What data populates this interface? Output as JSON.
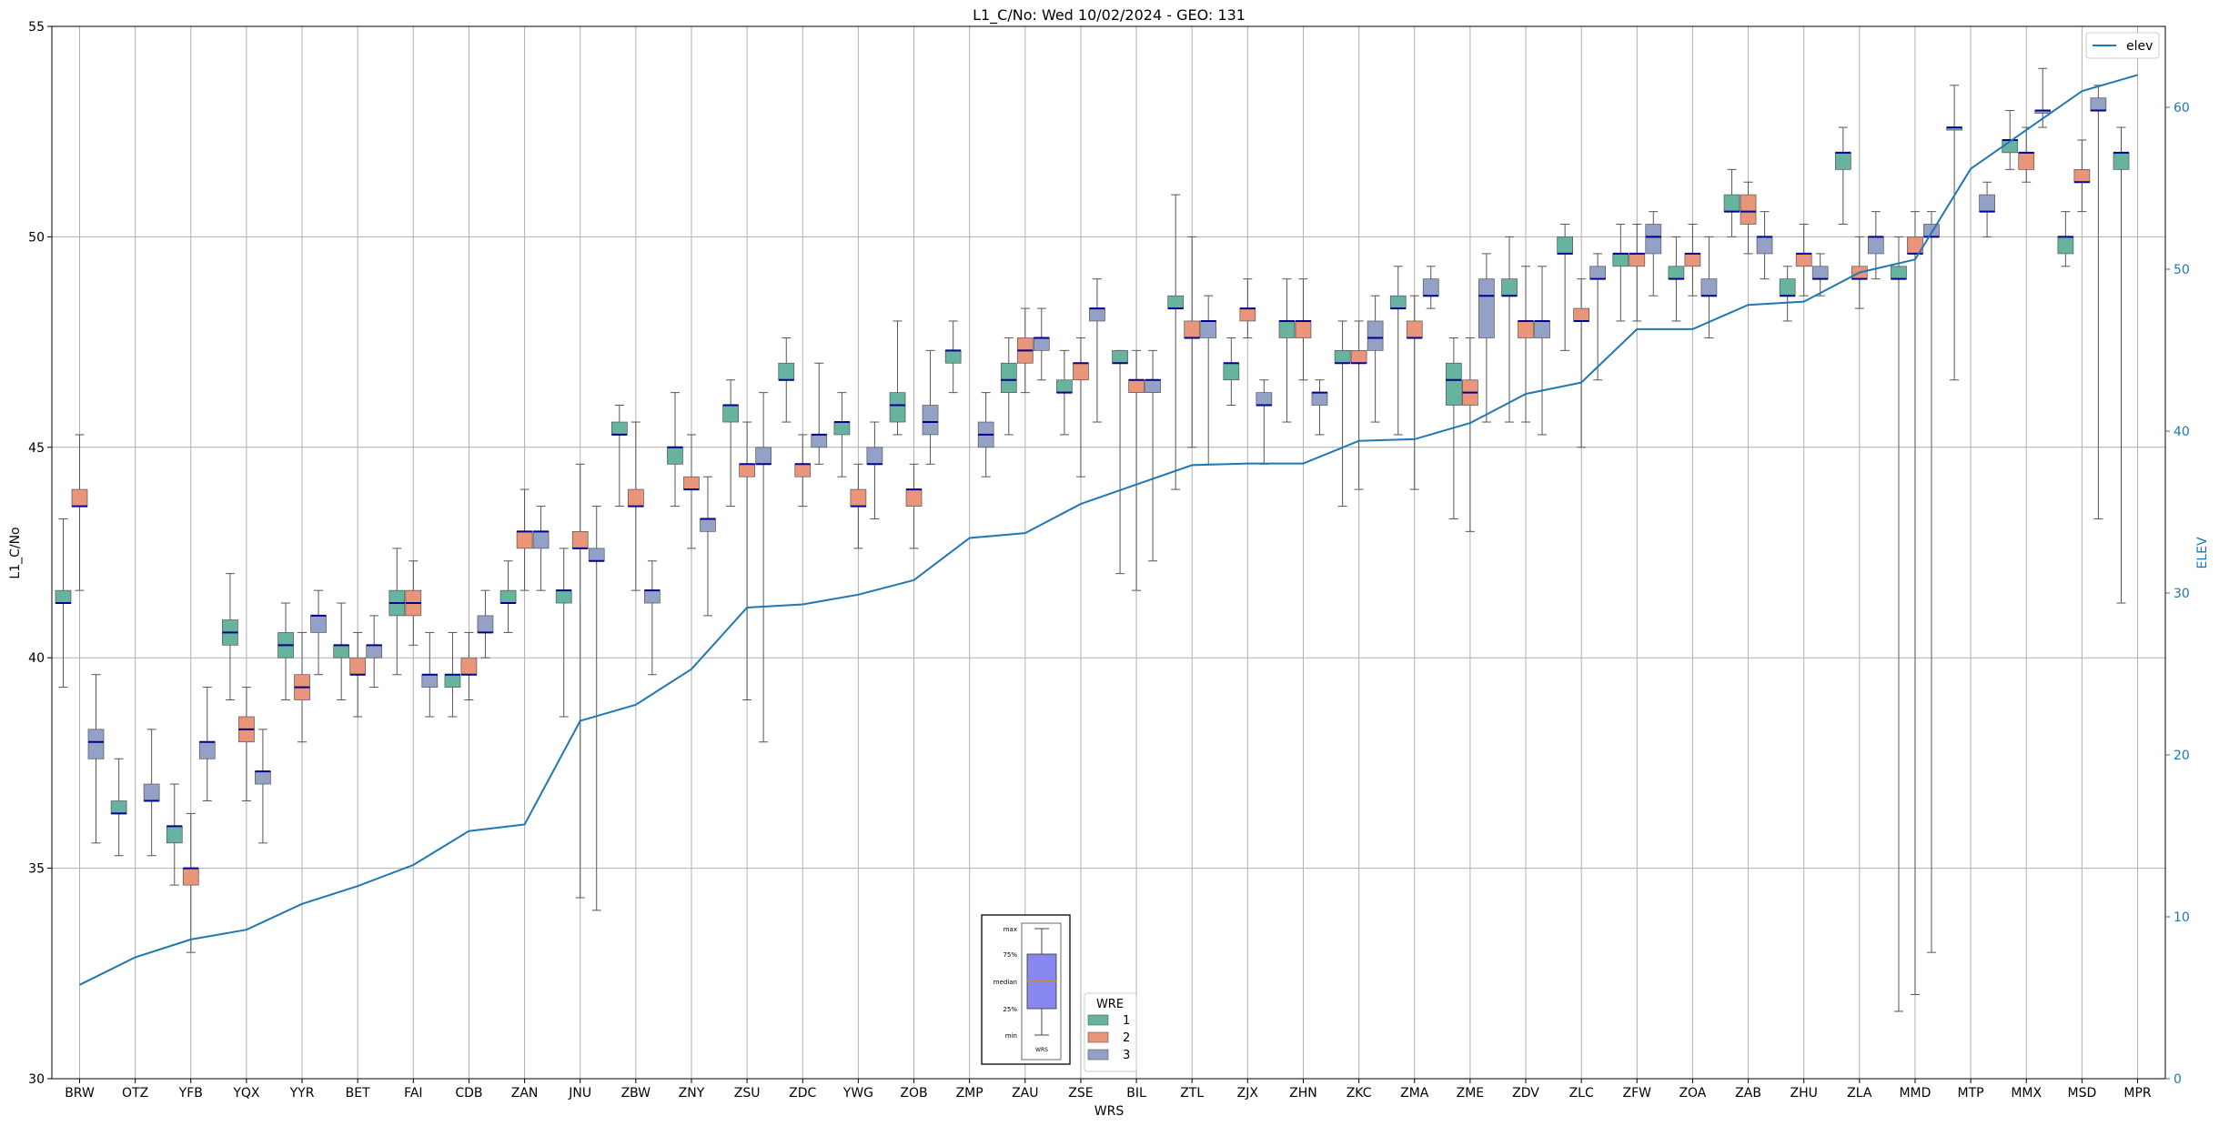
{
  "chart_data": {
    "type": "box",
    "title": "L1_C/No: Wed 10/02/2024 - GEO: 131",
    "xlabel": "WRS",
    "ylabel": "L1_C/No",
    "y2label": "ELEV",
    "ylim": [
      30,
      55
    ],
    "y2lim": [
      0,
      65
    ],
    "yticks": [
      30,
      35,
      40,
      45,
      50,
      55
    ],
    "y2ticks": [
      0,
      10,
      20,
      30,
      40,
      50,
      60
    ],
    "grid": true,
    "categories": [
      "BRW",
      "OTZ",
      "YFB",
      "YQX",
      "YYR",
      "BET",
      "FAI",
      "CDB",
      "ZAN",
      "JNU",
      "ZBW",
      "ZNY",
      "ZSU",
      "ZDC",
      "YWG",
      "ZOB",
      "ZMP",
      "ZAU",
      "ZSE",
      "BIL",
      "ZTL",
      "ZJX",
      "ZHN",
      "ZKC",
      "ZMA",
      "ZME",
      "ZDV",
      "ZLC",
      "ZFW",
      "ZOA",
      "ZAB",
      "ZHU",
      "ZLA",
      "MMD",
      "MTP",
      "MMX",
      "MSD",
      "MPR"
    ],
    "legend_wre": {
      "title": "WRE",
      "position": "bottom-center",
      "items": [
        {
          "label": "1",
          "color": "#66b3a0"
        },
        {
          "label": "2",
          "color": "#e8957a"
        },
        {
          "label": "3",
          "color": "#94a1c7"
        }
      ]
    },
    "legend_elev": {
      "label": "elev",
      "color": "#1f77b4",
      "position": "top-right"
    },
    "median_color": "#00008b",
    "box_key": {
      "labels": [
        "max",
        "75%",
        "median",
        "25%",
        "min"
      ],
      "xlabel": "WRS"
    },
    "series": [
      {
        "name": "1",
        "boxes": [
          [
            0,
            39.3,
            41.3,
            41.3,
            41.6,
            43.3
          ],
          [
            1,
            35.3,
            36.3,
            36.3,
            36.6,
            37.6
          ],
          [
            2,
            34.6,
            35.6,
            36.0,
            36.0,
            37.0
          ],
          [
            3,
            39.0,
            40.3,
            40.6,
            40.9,
            42.0
          ],
          [
            4,
            39.0,
            40.0,
            40.3,
            40.6,
            41.3
          ],
          [
            5,
            39.0,
            40.0,
            40.3,
            40.3,
            41.3
          ],
          [
            6,
            39.6,
            41.0,
            41.3,
            41.6,
            42.6
          ],
          [
            7,
            38.6,
            39.3,
            39.6,
            39.6,
            40.6
          ],
          [
            8,
            40.6,
            41.3,
            41.3,
            41.6,
            42.3
          ],
          [
            9,
            38.6,
            41.3,
            41.6,
            41.6,
            42.6
          ],
          [
            10,
            43.6,
            45.3,
            45.3,
            45.6,
            46.0
          ],
          [
            11,
            43.6,
            44.6,
            45.0,
            45.0,
            46.3
          ],
          [
            12,
            43.6,
            45.6,
            46.0,
            46.0,
            46.6
          ],
          [
            13,
            45.6,
            46.6,
            46.6,
            47.0,
            47.6
          ],
          [
            14,
            44.3,
            45.3,
            45.6,
            45.6,
            46.3
          ],
          [
            15,
            45.3,
            45.6,
            46.0,
            46.3,
            48.0
          ],
          [
            16,
            46.3,
            47.0,
            47.3,
            47.3,
            48.0
          ],
          [
            17,
            45.3,
            46.3,
            46.6,
            47.0,
            47.6
          ],
          [
            18,
            45.3,
            46.3,
            46.3,
            46.6,
            47.3
          ],
          [
            19,
            42.0,
            47.0,
            47.0,
            47.3,
            47.3
          ],
          [
            20,
            44.0,
            48.3,
            48.3,
            48.6,
            51.0
          ],
          [
            21,
            46.0,
            46.6,
            47.0,
            47.0,
            47.6
          ],
          [
            22,
            45.6,
            47.6,
            48.0,
            48.0,
            49.0
          ],
          [
            23,
            43.6,
            47.0,
            47.0,
            47.3,
            48.0
          ],
          [
            24,
            45.3,
            48.3,
            48.3,
            48.6,
            49.3
          ],
          [
            25,
            43.3,
            46.0,
            46.6,
            47.0,
            47.6
          ],
          [
            26,
            45.6,
            48.6,
            48.6,
            49.0,
            50.0
          ],
          [
            27,
            47.3,
            49.6,
            49.6,
            50.0,
            50.3
          ],
          [
            28,
            48.0,
            49.3,
            49.6,
            49.6,
            50.3
          ],
          [
            29,
            48.0,
            49.0,
            49.0,
            49.3,
            50.0
          ],
          [
            30,
            50.0,
            50.6,
            50.6,
            51.0,
            51.6
          ],
          [
            31,
            48.0,
            48.6,
            48.6,
            49.0,
            49.3
          ],
          [
            32,
            50.3,
            51.6,
            52.0,
            52.0,
            52.6
          ],
          [
            33,
            31.6,
            49.0,
            49.0,
            49.3,
            50.0
          ],
          [
            34,
            46.6,
            52.6,
            52.6,
            52.6,
            53.6
          ],
          [
            35,
            51.6,
            52.0,
            52.3,
            52.3,
            53.0
          ],
          [
            36,
            49.3,
            49.6,
            50.0,
            50.0,
            50.6
          ],
          [
            37,
            41.3,
            51.6,
            52.0,
            52.0,
            52.6
          ]
        ]
      },
      {
        "name": "2",
        "boxes": [
          [
            0,
            41.6,
            43.6,
            43.6,
            44.0,
            45.3
          ],
          [
            2,
            33.0,
            34.6,
            35.0,
            35.0,
            36.3
          ],
          [
            3,
            36.6,
            38.0,
            38.3,
            38.6,
            39.3
          ],
          [
            4,
            38.0,
            39.0,
            39.3,
            39.6,
            40.6
          ],
          [
            5,
            38.6,
            39.6,
            39.6,
            40.0,
            40.6
          ],
          [
            6,
            40.3,
            41.0,
            41.3,
            41.6,
            42.3
          ],
          [
            7,
            39.0,
            39.6,
            39.6,
            40.0,
            40.6
          ],
          [
            8,
            41.6,
            42.6,
            43.0,
            43.0,
            44.0
          ],
          [
            9,
            34.3,
            42.6,
            42.6,
            43.0,
            44.6
          ],
          [
            10,
            41.6,
            43.6,
            43.6,
            44.0,
            45.6
          ],
          [
            11,
            42.6,
            44.0,
            44.0,
            44.3,
            45.3
          ],
          [
            12,
            39.0,
            44.3,
            44.6,
            44.6,
            45.6
          ],
          [
            13,
            43.6,
            44.3,
            44.6,
            44.6,
            45.3
          ],
          [
            14,
            42.6,
            43.6,
            43.6,
            44.0,
            44.6
          ],
          [
            15,
            42.6,
            43.6,
            44.0,
            44.0,
            44.6
          ],
          [
            17,
            46.3,
            47.0,
            47.3,
            47.6,
            48.3
          ],
          [
            18,
            44.3,
            46.6,
            47.0,
            47.0,
            47.6
          ],
          [
            19,
            41.6,
            46.3,
            46.6,
            46.6,
            47.3
          ],
          [
            20,
            45.0,
            47.6,
            47.6,
            48.0,
            50.0
          ],
          [
            21,
            47.6,
            48.0,
            48.3,
            48.3,
            49.0
          ],
          [
            22,
            46.6,
            47.6,
            48.0,
            48.0,
            49.0
          ],
          [
            23,
            44.0,
            47.0,
            47.0,
            47.3,
            48.0
          ],
          [
            24,
            44.0,
            47.6,
            47.6,
            48.0,
            48.6
          ],
          [
            25,
            43.0,
            46.0,
            46.3,
            46.6,
            47.6
          ],
          [
            26,
            45.6,
            47.6,
            48.0,
            48.0,
            49.3
          ],
          [
            27,
            45.0,
            48.0,
            48.0,
            48.3,
            49.0
          ],
          [
            28,
            48.0,
            49.3,
            49.6,
            49.6,
            50.3
          ],
          [
            29,
            48.6,
            49.3,
            49.6,
            49.6,
            50.3
          ],
          [
            30,
            49.6,
            50.3,
            50.6,
            51.0,
            51.3
          ],
          [
            31,
            48.6,
            49.3,
            49.6,
            49.6,
            50.3
          ],
          [
            32,
            48.3,
            49.0,
            49.0,
            49.3,
            50.0
          ],
          [
            33,
            32.0,
            49.6,
            49.6,
            50.0,
            50.6
          ],
          [
            35,
            51.3,
            51.6,
            52.0,
            52.0,
            52.6
          ],
          [
            36,
            50.6,
            51.3,
            51.3,
            51.6,
            52.3
          ]
        ]
      },
      {
        "name": "3",
        "boxes": [
          [
            0,
            35.6,
            37.6,
            38.0,
            38.3,
            39.6
          ],
          [
            1,
            35.3,
            36.6,
            36.6,
            37.0,
            38.3
          ],
          [
            2,
            36.6,
            37.6,
            38.0,
            38.0,
            39.3
          ],
          [
            3,
            35.6,
            37.0,
            37.3,
            37.3,
            38.3
          ],
          [
            4,
            39.6,
            40.6,
            41.0,
            41.0,
            41.6
          ],
          [
            5,
            39.3,
            40.0,
            40.3,
            40.3,
            41.0
          ],
          [
            6,
            38.6,
            39.3,
            39.6,
            39.6,
            40.6
          ],
          [
            7,
            40.0,
            40.6,
            40.6,
            41.0,
            41.6
          ],
          [
            8,
            41.6,
            42.6,
            43.0,
            43.0,
            43.6
          ],
          [
            9,
            34.0,
            42.3,
            42.3,
            42.6,
            43.6
          ],
          [
            10,
            39.6,
            41.3,
            41.6,
            41.6,
            42.3
          ],
          [
            11,
            41.0,
            43.0,
            43.3,
            43.3,
            44.3
          ],
          [
            12,
            38.0,
            44.6,
            44.6,
            45.0,
            46.3
          ],
          [
            13,
            44.6,
            45.0,
            45.3,
            45.3,
            47.0
          ],
          [
            14,
            43.3,
            44.6,
            44.6,
            45.0,
            45.6
          ],
          [
            15,
            44.6,
            45.3,
            45.6,
            46.0,
            47.3
          ],
          [
            16,
            44.3,
            45.0,
            45.3,
            45.6,
            46.3
          ],
          [
            17,
            46.6,
            47.3,
            47.6,
            47.6,
            48.3
          ],
          [
            18,
            45.6,
            48.0,
            48.3,
            48.3,
            49.0
          ],
          [
            19,
            42.3,
            46.3,
            46.6,
            46.6,
            47.3
          ],
          [
            20,
            44.6,
            47.6,
            48.0,
            48.0,
            48.6
          ],
          [
            21,
            44.6,
            46.0,
            46.0,
            46.3,
            46.6
          ],
          [
            22,
            45.3,
            46.0,
            46.3,
            46.3,
            46.6
          ],
          [
            23,
            45.6,
            47.3,
            47.6,
            48.0,
            48.6
          ],
          [
            24,
            48.3,
            48.6,
            48.6,
            49.0,
            49.3
          ],
          [
            25,
            45.6,
            47.6,
            48.6,
            49.0,
            49.6
          ],
          [
            26,
            45.3,
            47.6,
            48.0,
            48.0,
            49.3
          ],
          [
            27,
            46.6,
            49.0,
            49.0,
            49.3,
            49.6
          ],
          [
            28,
            48.6,
            49.6,
            50.0,
            50.3,
            50.6
          ],
          [
            29,
            47.6,
            48.6,
            48.6,
            49.0,
            50.0
          ],
          [
            30,
            49.0,
            49.6,
            50.0,
            50.0,
            50.6
          ],
          [
            31,
            48.6,
            49.0,
            49.0,
            49.3,
            49.6
          ],
          [
            32,
            49.0,
            49.6,
            50.0,
            50.0,
            50.6
          ],
          [
            33,
            33.0,
            50.0,
            50.0,
            50.3,
            50.6
          ],
          [
            34,
            50.0,
            50.6,
            50.6,
            51.0,
            51.3
          ],
          [
            35,
            52.6,
            53.0,
            53.0,
            53.0,
            54.0
          ],
          [
            36,
            43.3,
            53.0,
            53.0,
            53.3,
            53.6
          ]
        ]
      }
    ],
    "elev": [
      5.8,
      7.5,
      8.6,
      9.2,
      10.8,
      11.9,
      13.2,
      15.3,
      15.7,
      22.1,
      23.1,
      25.3,
      29.1,
      29.3,
      29.9,
      30.8,
      33.4,
      33.7,
      35.5,
      36.7,
      37.9,
      38.0,
      38.0,
      39.4,
      39.5,
      40.5,
      42.3,
      43.0,
      46.3,
      46.3,
      47.8,
      48.0,
      49.8,
      50.6,
      56.2,
      58.6,
      61.0,
      62.0
    ]
  }
}
